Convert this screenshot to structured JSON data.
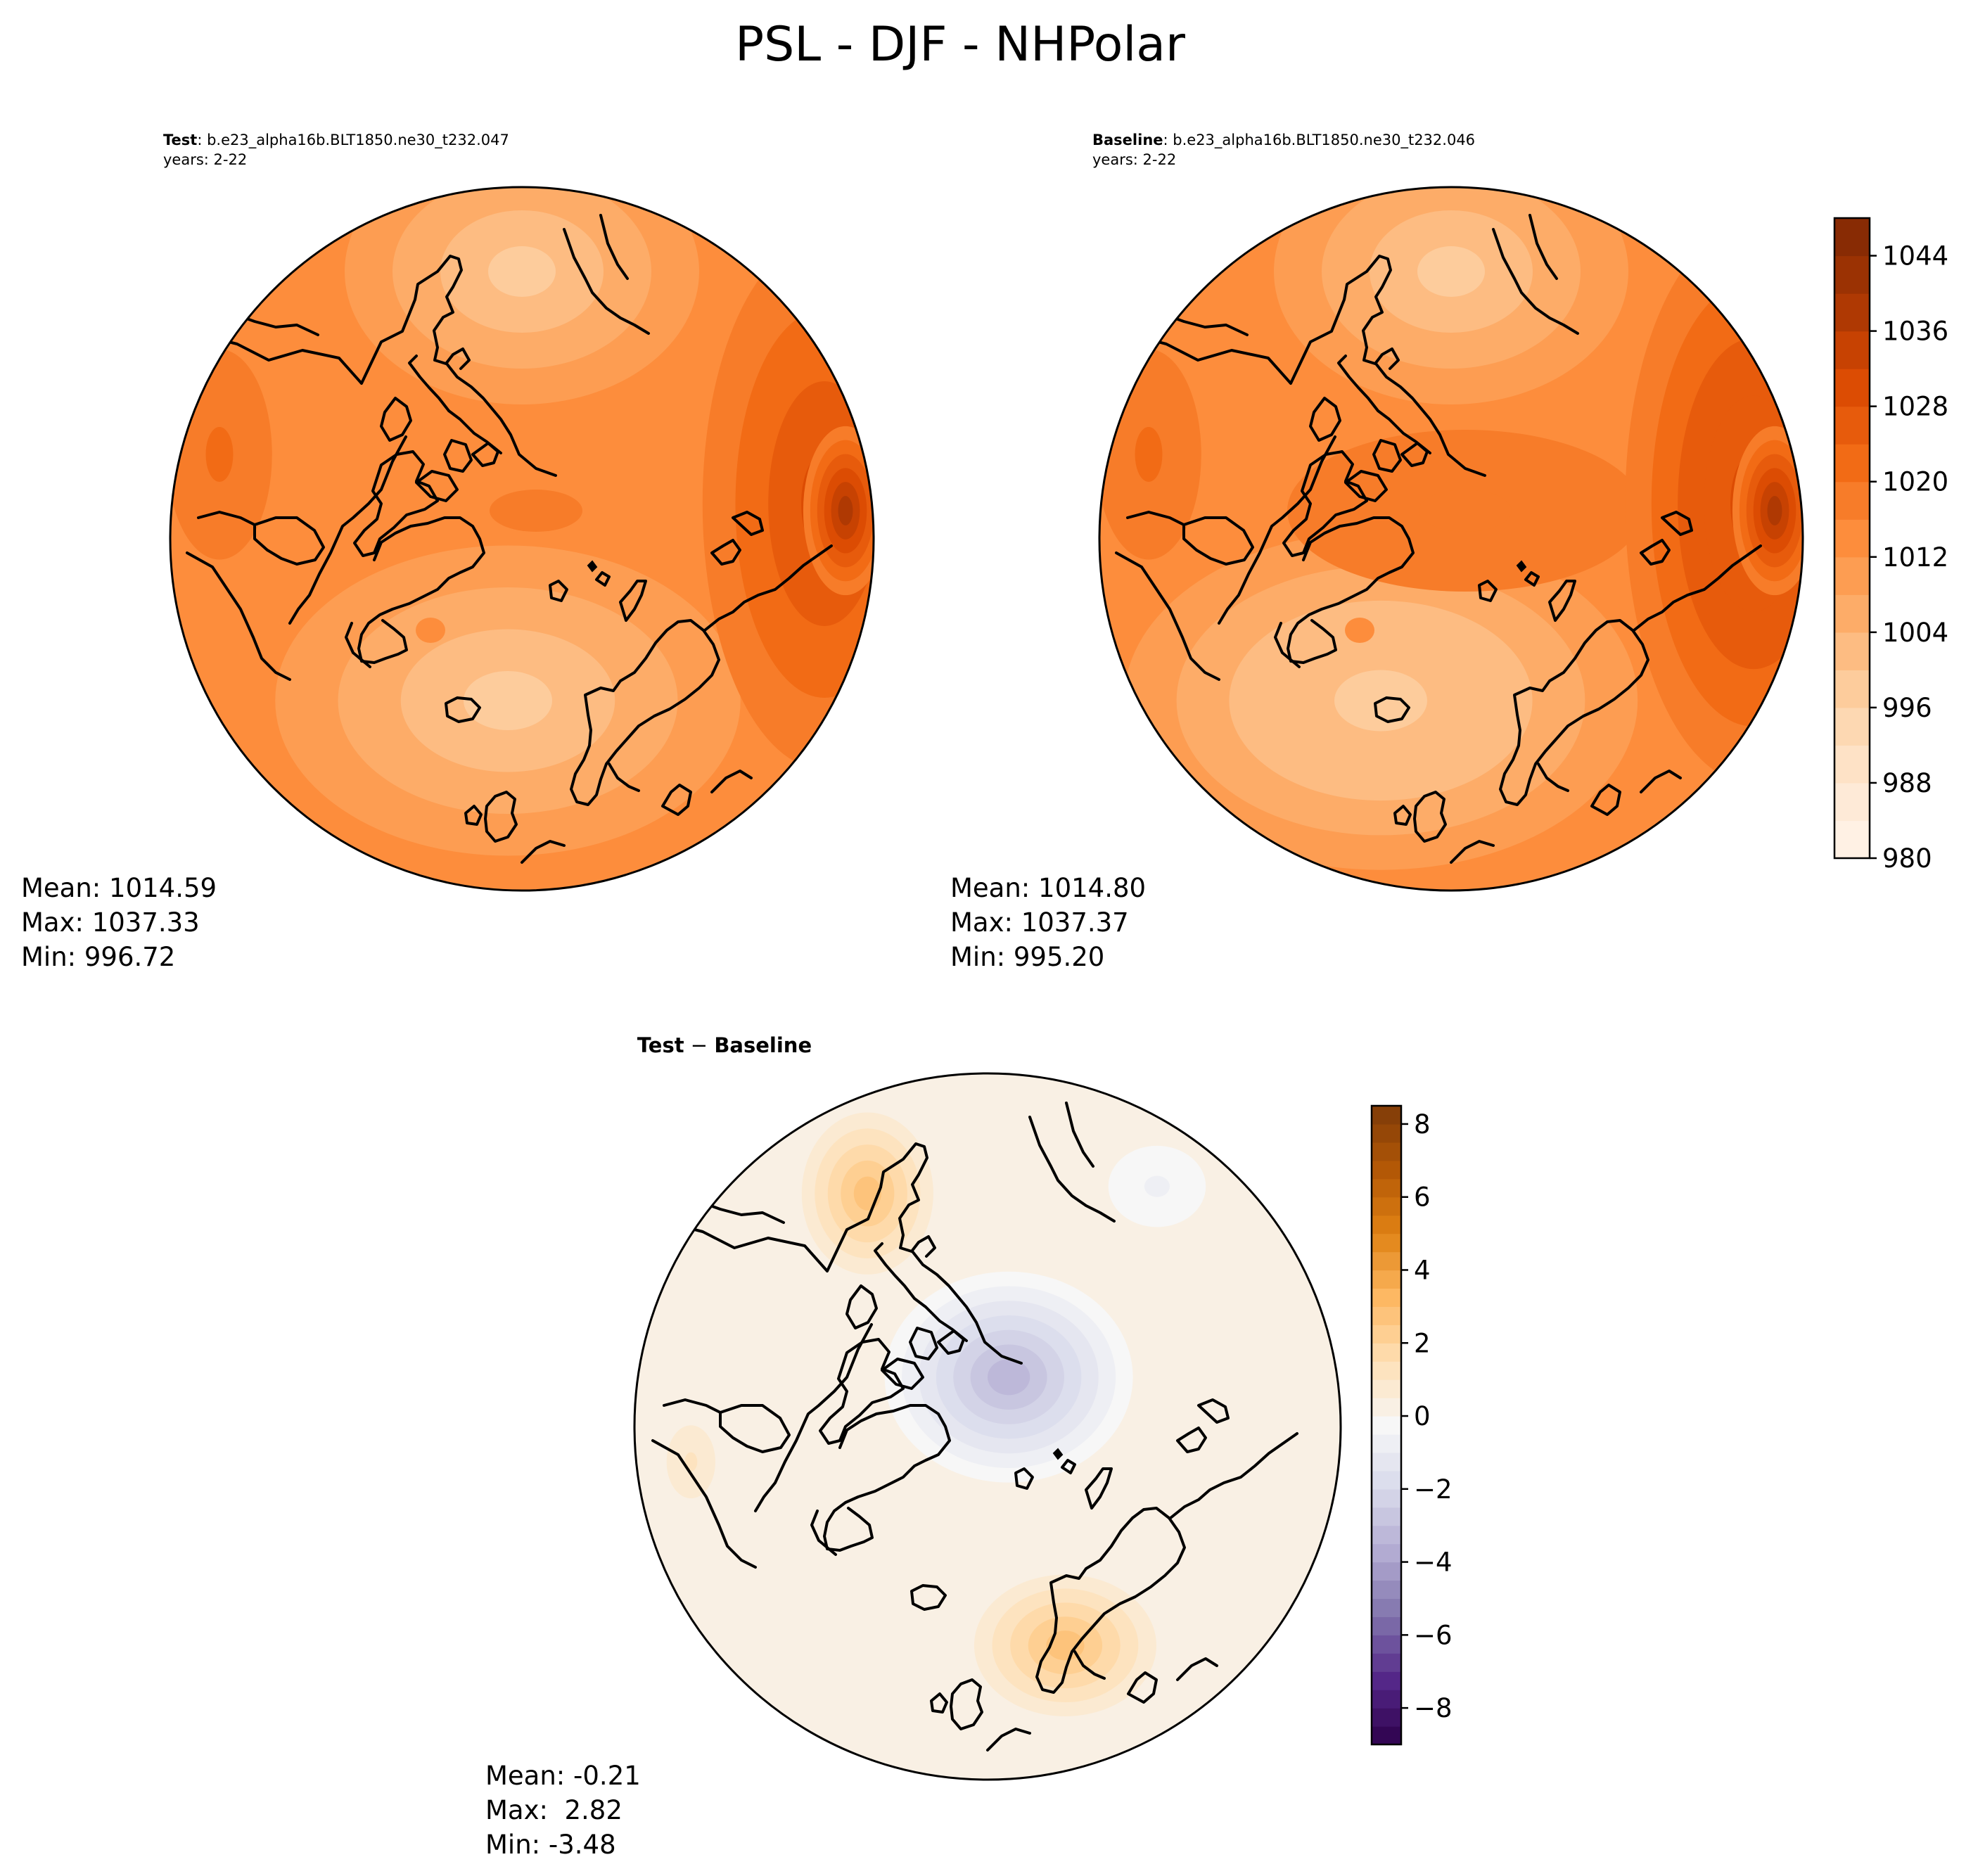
{
  "figure_title": "PSL - DJF - NHPolar",
  "panels": {
    "test": {
      "label_bold": "Test",
      "label_rest": ": b.e23_alpha16b.BLT1850.ne30_t232.047",
      "years": "years: 2-22",
      "stats": {
        "mean": "Mean: 1014.59",
        "max": "Max: 1037.33",
        "min": "Min: 996.72"
      }
    },
    "baseline": {
      "label_bold": "Baseline",
      "label_rest": ": b.e23_alpha16b.BLT1850.ne30_t232.046",
      "years": "years: 2-22",
      "stats": {
        "mean": "Mean: 1014.80",
        "max": "Max: 1037.37",
        "min": "Min: 995.20"
      }
    },
    "diff": {
      "title_bold_left": "Test",
      "title_sep": " − ",
      "title_bold_right": "Baseline",
      "stats": {
        "mean": "Mean: -0.21",
        "max": "Max:  2.82",
        "min": "Min: -3.48"
      }
    }
  },
  "colorbars": {
    "psl": {
      "colormap": "Oranges",
      "min": 980,
      "max": 1048,
      "step": 4,
      "ticks": [
        "980",
        "988",
        "996",
        "1004",
        "1012",
        "1020",
        "1028",
        "1036",
        "1044"
      ],
      "tick_values": [
        980,
        988,
        996,
        1004,
        1012,
        1020,
        1028,
        1036,
        1044
      ]
    },
    "diff": {
      "colormap": "PuOr_r",
      "min": -9,
      "max": 8.5,
      "step": 0.5,
      "ticks": [
        "−8",
        "−6",
        "−4",
        "−2",
        "0",
        "2",
        "4",
        "6",
        "8"
      ],
      "tick_values": [
        -8,
        -6,
        -4,
        -2,
        0,
        2,
        4,
        6,
        8
      ]
    }
  },
  "colors": {
    "oranges": [
      "#fff5eb",
      "#fee6ce",
      "#fdd0a2",
      "#fdae6b",
      "#fd8d3c",
      "#f16913",
      "#d94801",
      "#a63603",
      "#7f2704"
    ],
    "puor": [
      "#2d004b",
      "#542788",
      "#8073ac",
      "#b2abd2",
      "#d8daeb",
      "#f7f7f7",
      "#fee0b6",
      "#fdb863",
      "#e08214",
      "#b35806",
      "#7f3b08"
    ]
  },
  "map_fields": {
    "psl_test": {
      "bg": 1014,
      "features": [
        {
          "name": "north-pacific-low",
          "value": 999,
          "rx": 0.32,
          "ry": 0.24,
          "fx": 0.5,
          "fy": 0.12
        },
        {
          "name": "icelandic-low",
          "value": 998,
          "rx": 0.42,
          "ry": 0.28,
          "fx": 0.48,
          "fy": 0.73
        },
        {
          "name": "greenland-ridge",
          "value": 1012,
          "rx": 0.14,
          "ry": 0.12,
          "fx": 0.37,
          "fy": 0.63
        },
        {
          "name": "arctic-basin",
          "value": 1017,
          "rx": 0.44,
          "ry": 0.2,
          "fx": 0.52,
          "fy": 0.46
        },
        {
          "name": "siberian-high",
          "value": 1030,
          "rx": 0.22,
          "ry": 0.48,
          "fx": 0.93,
          "fy": 0.45
        },
        {
          "name": "siberian-core",
          "value": 1036,
          "rx": 0.07,
          "ry": 0.14,
          "fx": 0.96,
          "fy": 0.46
        },
        {
          "name": "north-america",
          "value": 1020,
          "rx": 0.13,
          "ry": 0.26,
          "fx": 0.07,
          "fy": 0.38
        }
      ]
    },
    "psl_baseline": {
      "bg": 1014,
      "features": [
        {
          "name": "north-pacific-low",
          "value": 998,
          "rx": 0.32,
          "ry": 0.24,
          "fx": 0.5,
          "fy": 0.12
        },
        {
          "name": "icelandic-low",
          "value": 997,
          "rx": 0.44,
          "ry": 0.29,
          "fx": 0.4,
          "fy": 0.73
        },
        {
          "name": "greenland-ridge",
          "value": 1012,
          "rx": 0.14,
          "ry": 0.12,
          "fx": 0.37,
          "fy": 0.63
        },
        {
          "name": "arctic-basin",
          "value": 1019,
          "rx": 0.44,
          "ry": 0.2,
          "fx": 0.52,
          "fy": 0.46
        },
        {
          "name": "siberian-high",
          "value": 1031,
          "rx": 0.22,
          "ry": 0.48,
          "fx": 0.93,
          "fy": 0.45
        },
        {
          "name": "siberian-core",
          "value": 1036,
          "rx": 0.07,
          "ry": 0.14,
          "fx": 0.96,
          "fy": 0.46
        },
        {
          "name": "north-america",
          "value": 1020,
          "rx": 0.13,
          "ry": 0.26,
          "fx": 0.07,
          "fy": 0.38
        }
      ]
    },
    "psl_diff": {
      "bg": 0,
      "features": [
        {
          "name": "arctic-negative",
          "value": -3.5,
          "rx": 0.2,
          "ry": 0.17,
          "fx": 0.53,
          "fy": 0.43
        },
        {
          "name": "pacific-positive",
          "value": 2.6,
          "rx": 0.13,
          "ry": 0.16,
          "fx": 0.33,
          "fy": 0.17
        },
        {
          "name": "europe-positive",
          "value": 2.8,
          "rx": 0.18,
          "ry": 0.14,
          "fx": 0.61,
          "fy": 0.81
        },
        {
          "name": "north-america-pos",
          "value": 1.0,
          "rx": 0.06,
          "ry": 0.09,
          "fx": 0.08,
          "fy": 0.55
        },
        {
          "name": "east-siberia-neg",
          "value": -1.0,
          "rx": 0.12,
          "ry": 0.1,
          "fx": 0.74,
          "fy": 0.16
        }
      ]
    }
  }
}
